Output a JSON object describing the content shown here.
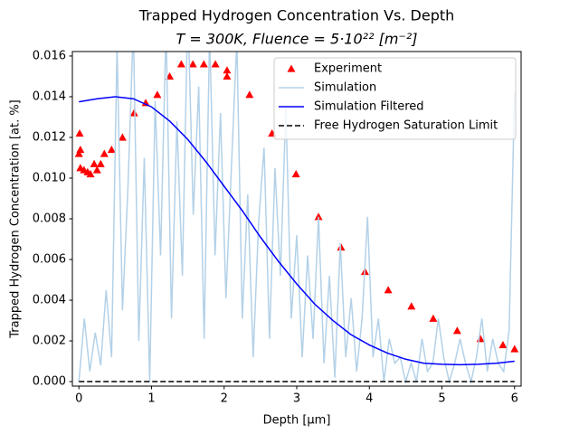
{
  "chart_data": {
    "type": "line",
    "title": "Trapped Hydrogen Concentration Vs. Depth",
    "subtitle": "T = 300K, Fluence = 5·10²² [m⁻²]",
    "x_label": "Depth [μm]",
    "y_label": "Trapped Hydrogen Concentration [at. %]",
    "xlim": [
      -0.09,
      6.09
    ],
    "ylim": [
      -0.00022,
      0.01622
    ],
    "xticks": [
      0,
      1,
      2,
      3,
      4,
      5,
      6
    ],
    "yticks": [
      {
        "value": 0,
        "label": "0.000"
      },
      0.002,
      0.004,
      0.006,
      0.008,
      {
        "value": 0.01,
        "label": "0.010"
      },
      0.012,
      0.014,
      0.016
    ],
    "legend": "upper right",
    "series": [
      {
        "name": "Experiment",
        "type": "scatter",
        "color": "#ff0000",
        "x": [
          0,
          0.01,
          0.02,
          0.02,
          0.07,
          0.12,
          0.16,
          0.21,
          0.25,
          0.3,
          0.35,
          0.45,
          0.6,
          0.76,
          0.92,
          1.08,
          1.25,
          1.41,
          1.57,
          1.72,
          1.88,
          2.04,
          2.04,
          2.35,
          2.66,
          2.99,
          3.3,
          3.61,
          3.94,
          4.26,
          4.58,
          4.88,
          5.21,
          5.53,
          5.84,
          6.0
        ],
        "values": [
          0.0112,
          0.0122,
          0.0114,
          0.0105,
          0.0104,
          0.0103,
          0.0102,
          0.0107,
          0.0104,
          0.0107,
          0.0112,
          0.0114,
          0.012,
          0.0132,
          0.0137,
          0.0141,
          0.015,
          0.0156,
          0.0156,
          0.0156,
          0.0156,
          0.0153,
          0.015,
          0.0141,
          0.0122,
          0.0102,
          0.0081,
          0.0066,
          0.0054,
          0.0045,
          0.0037,
          0.0031,
          0.0025,
          0.0021,
          0.0018,
          0.0016
        ]
      },
      {
        "name": "Simulation",
        "type": "line",
        "color": "#b3d1e8",
        "x": [
          0,
          0.075,
          0.15,
          0.225,
          0.3,
          0.375,
          0.45,
          0.525,
          0.6,
          0.675,
          0.75,
          0.825,
          0.9,
          0.975,
          1.05,
          1.125,
          1.2,
          1.275,
          1.35,
          1.425,
          1.5,
          1.575,
          1.65,
          1.725,
          1.8,
          1.875,
          1.95,
          2.025,
          2.1,
          2.175,
          2.25,
          2.325,
          2.4,
          2.475,
          2.55,
          2.625,
          2.7,
          2.775,
          2.85,
          2.925,
          3.0,
          3.075,
          3.15,
          3.225,
          3.3,
          3.375,
          3.45,
          3.525,
          3.6,
          3.675,
          3.75,
          3.825,
          3.9,
          3.975,
          4.05,
          4.125,
          4.2,
          4.275,
          4.35,
          4.425,
          4.5,
          4.575,
          4.65,
          4.725,
          4.8,
          4.875,
          4.95,
          5.025,
          5.1,
          5.175,
          5.25,
          5.325,
          5.4,
          5.475,
          5.55,
          5.625,
          5.7,
          5.775,
          5.85,
          5.925,
          6.0
        ],
        "values": [
          0,
          0.0031,
          0.0005,
          0.0024,
          0.0008,
          0.0045,
          0.0012,
          0.0165,
          0.0035,
          0.0095,
          0.0175,
          0.002,
          0.011,
          0,
          0.0138,
          0.0062,
          0.0175,
          0.0031,
          0.0128,
          0.0052,
          0.0185,
          0.0082,
          0.0145,
          0.0021,
          0.0172,
          0.0062,
          0.0132,
          0.0041,
          0.0105,
          0.0168,
          0.0031,
          0.0092,
          0.0012,
          0.0078,
          0.0115,
          0.0021,
          0.0105,
          0.0052,
          0.0135,
          0.0031,
          0.0072,
          0.0012,
          0.0062,
          0.0021,
          0.0081,
          0.0009,
          0.0052,
          0.0002,
          0.0068,
          0.0012,
          0.0041,
          0.0005,
          0.0031,
          0.0081,
          0.0012,
          0.0031,
          0,
          0.0021,
          0.0009,
          0.0012,
          0,
          0.0009,
          0,
          0.0021,
          0.0005,
          0.0009,
          0.0031,
          0.0012,
          0,
          0.0009,
          0.0021,
          0.0009,
          0,
          0.0012,
          0.0031,
          0.0005,
          0.0021,
          0.0009,
          0.0005,
          0.0025,
          0.0142
        ]
      },
      {
        "name": "Simulation Filtered",
        "type": "line",
        "color": "#0000ff",
        "x": [
          0,
          0.25,
          0.5,
          0.75,
          1.0,
          1.25,
          1.5,
          1.75,
          2.0,
          2.25,
          2.5,
          2.75,
          3.0,
          3.25,
          3.5,
          3.75,
          4.0,
          4.25,
          4.5,
          4.75,
          5.0,
          5.25,
          5.5,
          5.75,
          6.0
        ],
        "values": [
          0.01375,
          0.0139,
          0.014,
          0.0139,
          0.0135,
          0.0128,
          0.0119,
          0.0108,
          0.0096,
          0.0084,
          0.0071,
          0.0059,
          0.0048,
          0.0038,
          0.003,
          0.0023,
          0.0018,
          0.0014,
          0.0011,
          0.0009,
          0.00085,
          0.00083,
          0.00085,
          0.0009,
          0.001
        ]
      },
      {
        "name": "Free Hydrogen Saturation Limit",
        "type": "dashed",
        "color": "#000000",
        "x": [
          0,
          6
        ],
        "values": [
          0,
          0
        ]
      }
    ]
  }
}
